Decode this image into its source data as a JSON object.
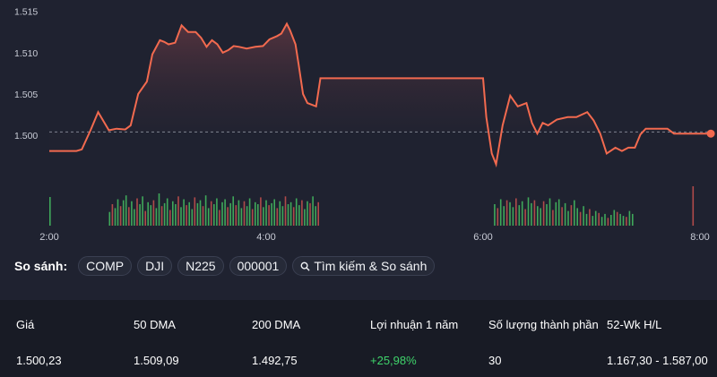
{
  "chart_data": {
    "type": "line",
    "y_ticks": [
      "1.515",
      "1.510",
      "1.505",
      "1.500"
    ],
    "x_ticks": [
      "2:00",
      "4:00",
      "6:00",
      "8:00"
    ],
    "ylim": [
      1.496,
      1.5155
    ],
    "xlim": [
      2.0,
      8.0
    ],
    "reference_level": 1.5004,
    "grid": false,
    "line_color": "#f26a4f",
    "series": [
      {
        "x": [
          2.0,
          2.25,
          2.3,
          2.38,
          2.45,
          2.55,
          2.62,
          2.7,
          2.75,
          2.82,
          2.9,
          2.95,
          3.02,
          3.06,
          3.1,
          3.16,
          3.22,
          3.28,
          3.35,
          3.4,
          3.45,
          3.5,
          3.55,
          3.6,
          3.65,
          3.7,
          3.75,
          3.82,
          3.9,
          3.97,
          4.03,
          4.1,
          4.14,
          4.19,
          4.22,
          4.27,
          4.3,
          4.34,
          4.38,
          4.46,
          4.5,
          4.53,
          4.58,
          4.65,
          4.72,
          4.78,
          4.85,
          4.95,
          5.05,
          5.15,
          5.25,
          5.35,
          5.45,
          5.55,
          5.65,
          5.75,
          5.85,
          5.95,
          6.0,
          6.03,
          6.08,
          6.12,
          6.18,
          6.25,
          6.32,
          6.4,
          6.45,
          6.5,
          6.55,
          6.6,
          6.68,
          6.78,
          6.86,
          6.96,
          7.02,
          7.08,
          7.14,
          7.22,
          7.28,
          7.34,
          7.4,
          7.45,
          7.5,
          7.6,
          7.7,
          7.76,
          7.85,
          7.95,
          8.0,
          8.05,
          8.1
        ],
        "y": [
          1.4981,
          1.4981,
          1.4983,
          1.5006,
          1.5028,
          1.5006,
          1.5008,
          1.5007,
          1.5012,
          1.505,
          1.5065,
          1.5098,
          1.5115,
          1.5113,
          1.511,
          1.5112,
          1.5133,
          1.5125,
          1.5125,
          1.5118,
          1.5107,
          1.5115,
          1.511,
          1.51,
          1.5103,
          1.5108,
          1.5107,
          1.5105,
          1.5107,
          1.5108,
          1.5116,
          1.512,
          1.5123,
          1.5135,
          1.5127,
          1.511,
          1.5085,
          1.505,
          1.5039,
          1.5035,
          1.5069,
          1.5069,
          1.5069,
          1.5069,
          1.5069,
          1.5069,
          1.5069,
          1.5069,
          1.5069,
          1.5069,
          1.5069,
          1.5069,
          1.5069,
          1.5069,
          1.5069,
          1.5069,
          1.5069,
          1.5069,
          1.5069,
          1.5022,
          1.4978,
          1.4965,
          1.5012,
          1.5048,
          1.5035,
          1.5039,
          1.5015,
          1.5002,
          1.5015,
          1.5012,
          1.5019,
          1.5022,
          1.5022,
          1.5028,
          1.5018,
          1.5002,
          1.4978,
          1.4985,
          1.4981,
          1.4985,
          1.4985,
          1.5001,
          1.5008,
          1.5008,
          1.5008,
          1.5002,
          1.5002,
          1.5002,
          1.5002,
          1.5002,
          1.5002
        ]
      }
    ],
    "volume": [
      {
        "x_start": 2.55,
        "x_end": 4.5,
        "bars": [
          14,
          22,
          18,
          27,
          20,
          26,
          31,
          19,
          25,
          17,
          28,
          22,
          30,
          15,
          24,
          21,
          26,
          18,
          33,
          20,
          23,
          28,
          16,
          25,
          22,
          30,
          19,
          27,
          21,
          24,
          17,
          29,
          23,
          26,
          20,
          31,
          18,
          25,
          22,
          28,
          16,
          24,
          27,
          19,
          23,
          30,
          21,
          26,
          18,
          25,
          20,
          28,
          17,
          24,
          22,
          29,
          19,
          26,
          21,
          23,
          27,
          18,
          25,
          20,
          30,
          22,
          24,
          19,
          28,
          21,
          26,
          17,
          25,
          23,
          30,
          20,
          24
        ]
      },
      {
        "x_start": 6.1,
        "x_end": 7.4,
        "bars": [
          22,
          18,
          27,
          20,
          26,
          24,
          19,
          28,
          21,
          25,
          17,
          29,
          23,
          26,
          20,
          18,
          25,
          22,
          28,
          16,
          24,
          27,
          19,
          23,
          15,
          21,
          26,
          18,
          14,
          20,
          12,
          17,
          10,
          15,
          13,
          9,
          12,
          8,
          11,
          16,
          14,
          12,
          10,
          9,
          15,
          12
        ]
      }
    ]
  },
  "compare": {
    "label": "So sánh:",
    "chips": [
      "COMP",
      "DJI",
      "N225",
      "000001"
    ],
    "search": "Tìm kiếm & So sánh"
  },
  "stats": {
    "labels": [
      "Giá",
      "50 DMA",
      "200 DMA",
      "Lợi nhuận 1 năm",
      "Số lượng thành phần",
      "52-Wk H/L"
    ],
    "values": [
      "1.500,23",
      "1.509,09",
      "1.492,75",
      "+25,98%",
      "30",
      "1.167,30 - 1.587,00"
    ],
    "positive_color": "#3fd46b"
  }
}
